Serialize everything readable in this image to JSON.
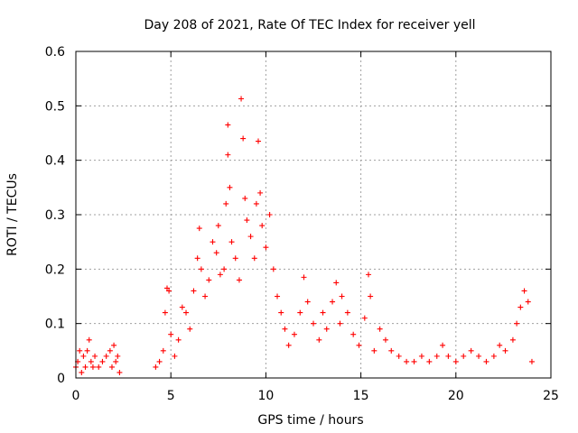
{
  "chart_data": {
    "type": "scatter",
    "title": "Day 208 of 2021, Rate Of TEC Index for receiver yell",
    "xlabel": "GPS time / hours",
    "ylabel": "ROTI / TECUs",
    "xlim": [
      0,
      25
    ],
    "ylim": [
      0,
      0.6
    ],
    "x_ticks": [
      "0",
      "5",
      "10",
      "15",
      "20",
      "25"
    ],
    "y_ticks": [
      "0",
      "0.1",
      "0.2",
      "0.3",
      "0.4",
      "0.5",
      "0.6"
    ],
    "x_tick_values": [
      0,
      5,
      10,
      15,
      20,
      25
    ],
    "y_tick_values": [
      0,
      0.1,
      0.2,
      0.3,
      0.4,
      0.5,
      0.6
    ],
    "grid": true,
    "marker": "+",
    "marker_color": "#ff0000",
    "series": [
      {
        "points": [
          [
            0.0,
            0.02
          ],
          [
            0.1,
            0.03
          ],
          [
            0.2,
            0.05
          ],
          [
            0.3,
            0.01
          ],
          [
            0.4,
            0.04
          ],
          [
            0.5,
            0.02
          ],
          [
            0.6,
            0.05
          ],
          [
            0.7,
            0.07
          ],
          [
            0.8,
            0.03
          ],
          [
            0.9,
            0.02
          ],
          [
            1.0,
            0.04
          ],
          [
            1.2,
            0.02
          ],
          [
            1.4,
            0.03
          ],
          [
            1.6,
            0.04
          ],
          [
            1.8,
            0.05
          ],
          [
            1.9,
            0.02
          ],
          [
            2.0,
            0.06
          ],
          [
            2.1,
            0.03
          ],
          [
            2.2,
            0.04
          ],
          [
            2.3,
            0.01
          ],
          [
            4.2,
            0.02
          ],
          [
            4.4,
            0.03
          ],
          [
            4.6,
            0.05
          ],
          [
            4.7,
            0.12
          ],
          [
            4.8,
            0.165
          ],
          [
            4.9,
            0.16
          ],
          [
            5.0,
            0.08
          ],
          [
            5.2,
            0.04
          ],
          [
            5.4,
            0.07
          ],
          [
            5.6,
            0.13
          ],
          [
            5.8,
            0.12
          ],
          [
            6.0,
            0.09
          ],
          [
            6.2,
            0.16
          ],
          [
            6.4,
            0.22
          ],
          [
            6.5,
            0.275
          ],
          [
            6.6,
            0.2
          ],
          [
            6.8,
            0.15
          ],
          [
            7.0,
            0.18
          ],
          [
            7.2,
            0.25
          ],
          [
            7.4,
            0.23
          ],
          [
            7.5,
            0.28
          ],
          [
            7.6,
            0.19
          ],
          [
            7.8,
            0.2
          ],
          [
            7.9,
            0.32
          ],
          [
            8.0,
            0.41
          ],
          [
            8.0,
            0.465
          ],
          [
            8.1,
            0.35
          ],
          [
            8.2,
            0.25
          ],
          [
            8.4,
            0.22
          ],
          [
            8.6,
            0.18
          ],
          [
            8.7,
            0.513
          ],
          [
            8.8,
            0.44
          ],
          [
            8.9,
            0.33
          ],
          [
            9.0,
            0.29
          ],
          [
            9.2,
            0.26
          ],
          [
            9.4,
            0.22
          ],
          [
            9.5,
            0.32
          ],
          [
            9.6,
            0.435
          ],
          [
            9.7,
            0.34
          ],
          [
            9.8,
            0.28
          ],
          [
            10.0,
            0.24
          ],
          [
            10.2,
            0.3
          ],
          [
            10.4,
            0.2
          ],
          [
            10.6,
            0.15
          ],
          [
            10.8,
            0.12
          ],
          [
            11.0,
            0.09
          ],
          [
            11.2,
            0.06
          ],
          [
            11.5,
            0.08
          ],
          [
            11.8,
            0.12
          ],
          [
            12.0,
            0.185
          ],
          [
            12.2,
            0.14
          ],
          [
            12.5,
            0.1
          ],
          [
            12.8,
            0.07
          ],
          [
            13.0,
            0.12
          ],
          [
            13.2,
            0.09
          ],
          [
            13.5,
            0.14
          ],
          [
            13.7,
            0.175
          ],
          [
            13.9,
            0.1
          ],
          [
            14.0,
            0.15
          ],
          [
            14.3,
            0.12
          ],
          [
            14.6,
            0.08
          ],
          [
            14.9,
            0.06
          ],
          [
            15.2,
            0.11
          ],
          [
            15.4,
            0.19
          ],
          [
            15.5,
            0.15
          ],
          [
            15.7,
            0.05
          ],
          [
            16.0,
            0.09
          ],
          [
            16.3,
            0.07
          ],
          [
            16.6,
            0.05
          ],
          [
            17.0,
            0.04
          ],
          [
            17.4,
            0.03
          ],
          [
            17.8,
            0.03
          ],
          [
            18.2,
            0.04
          ],
          [
            18.6,
            0.03
          ],
          [
            19.0,
            0.04
          ],
          [
            19.3,
            0.06
          ],
          [
            19.6,
            0.04
          ],
          [
            20.0,
            0.03
          ],
          [
            20.4,
            0.04
          ],
          [
            20.8,
            0.05
          ],
          [
            21.2,
            0.04
          ],
          [
            21.6,
            0.03
          ],
          [
            22.0,
            0.04
          ],
          [
            22.3,
            0.06
          ],
          [
            22.6,
            0.05
          ],
          [
            23.0,
            0.07
          ],
          [
            23.2,
            0.1
          ],
          [
            23.4,
            0.13
          ],
          [
            23.6,
            0.16
          ],
          [
            23.8,
            0.14
          ],
          [
            24.0,
            0.03
          ]
        ]
      }
    ]
  }
}
